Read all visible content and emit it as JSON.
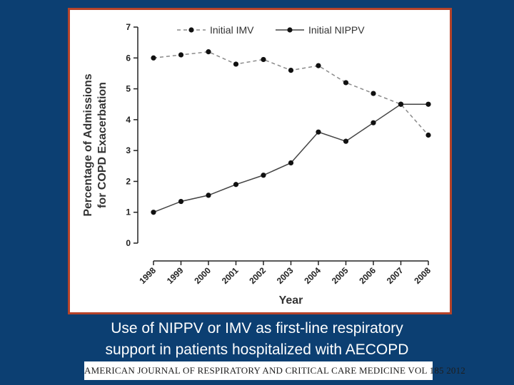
{
  "chart_data": {
    "type": "line",
    "title": "",
    "xlabel": "Year",
    "ylabel": [
      "Percentage of Admissions",
      "for COPD Exacerbation"
    ],
    "ylim": [
      0,
      7
    ],
    "yticks": [
      0,
      1,
      2,
      3,
      4,
      5,
      6,
      7
    ],
    "x": [
      "1998",
      "1999",
      "2000",
      "2001",
      "2002",
      "2003",
      "2004",
      "2005",
      "2006",
      "2007",
      "2008"
    ],
    "series": [
      {
        "name": "Initial IMV",
        "line_style": "dashed",
        "values": [
          6.0,
          6.1,
          6.2,
          5.8,
          5.95,
          5.6,
          5.75,
          5.2,
          4.85,
          4.5,
          3.5
        ]
      },
      {
        "name": "Initial NIPPV",
        "line_style": "solid",
        "values": [
          1.0,
          1.35,
          1.55,
          1.9,
          2.2,
          2.6,
          3.6,
          3.3,
          3.9,
          4.5,
          4.5
        ]
      }
    ],
    "legend_position": "top",
    "grid": false
  },
  "caption": {
    "line1": "Use of NIPPV or IMV as first-line respiratory",
    "line2": "support in patients hospitalized with AECOPD"
  },
  "journal": "AMERICAN JOURNAL OF RESPIRATORY AND CRITICAL CARE MEDICINE   VOL 185   2012",
  "colors": {
    "background": "#0c3f72",
    "frame_border": "#b5432a",
    "line_imv": "#8a8a8a",
    "line_nippv": "#444444",
    "marker": "#111111"
  }
}
